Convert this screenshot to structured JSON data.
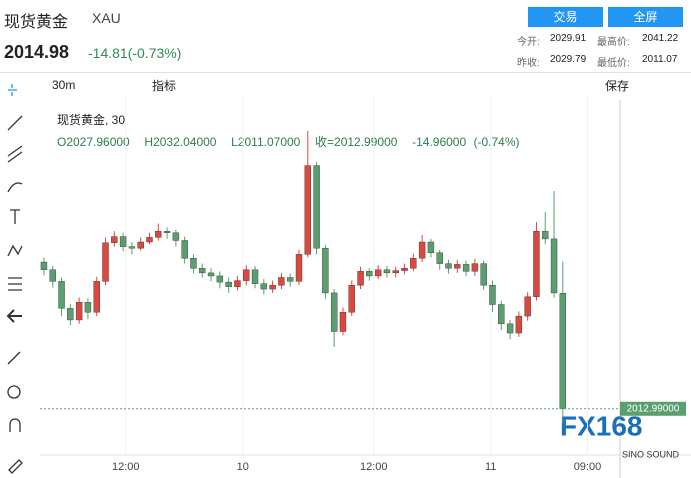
{
  "header": {
    "name": "现货黄金",
    "symbol": "XAU",
    "price": "2014.98",
    "change": "-14.81(-0.73%)",
    "buttons": [
      "交易",
      "全屏"
    ],
    "stats": [
      [
        "今开:",
        "2029.91",
        "最高价:",
        "2041.22"
      ],
      [
        "昨收:",
        "2029.79",
        "最低价:",
        "2011.07"
      ]
    ]
  },
  "toolbar": {
    "interval": "30m",
    "indicators": "指标",
    "save": "保存"
  },
  "legend": {
    "title": "现货黄金, 30",
    "values": [
      "O2027.96000",
      "H2032.04000",
      "L2011.07000",
      "收=2012.99000",
      "-14.96000 (-0.74%)"
    ]
  },
  "watermark": {
    "logo": "FX168",
    "sub": "SINO SOUND"
  },
  "chart_data": {
    "type": "candlestick",
    "up_color": "#d9493f",
    "down_color": "#5a9f6e",
    "grid": true,
    "open": [
      2032.0,
      2031.0,
      2029.5,
      2026.0,
      2024.5,
      2026.8,
      2025.5,
      2029.5,
      2034.5,
      2035.3,
      2034.0,
      2033.8,
      2034.6,
      2035.2,
      2036.0,
      2035.8,
      2034.8,
      2032.5,
      2031.2,
      2030.6,
      2030.2,
      2029.4,
      2028.8,
      2029.6,
      2031.0,
      2029.2,
      2028.5,
      2029.0,
      2030.0,
      2029.5,
      2033.0,
      2044.5,
      2033.8,
      2028.0,
      2023.0,
      2025.5,
      2029.0,
      2030.8,
      2030.2,
      2031.0,
      2030.6,
      2030.9,
      2031.2,
      2032.5,
      2034.6,
      2033.2,
      2031.8,
      2031.2,
      2031.7,
      2030.8,
      2031.8,
      2029.0,
      2026.5,
      2024.0,
      2022.8,
      2025.0,
      2027.5,
      2036.0,
      2035.0,
      2027.96
    ],
    "high": [
      2032.6,
      2031.5,
      2030.0,
      2026.6,
      2027.4,
      2027.3,
      2030.1,
      2035.2,
      2036.0,
      2035.8,
      2034.6,
      2035.2,
      2035.8,
      2037.0,
      2036.5,
      2036.2,
      2035.3,
      2033.0,
      2031.8,
      2031.2,
      2030.8,
      2030.0,
      2030.2,
      2031.6,
      2031.5,
      2029.8,
      2029.6,
      2030.6,
      2030.5,
      2033.6,
      2049.0,
      2045.0,
      2034.2,
      2028.5,
      2026.1,
      2029.6,
      2031.4,
      2031.2,
      2031.6,
      2031.5,
      2031.4,
      2031.8,
      2033.1,
      2035.5,
      2035.0,
      2033.6,
      2032.3,
      2032.3,
      2032.2,
      2032.4,
      2032.2,
      2029.6,
      2027.0,
      2024.5,
      2025.6,
      2028.1,
      2037.2,
      2038.5,
      2041.2,
      2032.04
    ],
    "low": [
      2030.3,
      2028.7,
      2025.0,
      2023.8,
      2024.0,
      2024.6,
      2025.0,
      2029.0,
      2034.0,
      2033.4,
      2033.0,
      2033.5,
      2034.3,
      2034.8,
      2035.0,
      2034.0,
      2031.8,
      2030.5,
      2030.0,
      2029.5,
      2028.6,
      2028.0,
      2028.3,
      2029.0,
      2028.6,
      2027.8,
      2028.0,
      2028.5,
      2028.8,
      2029.0,
      2032.6,
      2033.0,
      2027.2,
      2021.0,
      2022.5,
      2025.0,
      2028.5,
      2029.6,
      2029.8,
      2030.0,
      2030.0,
      2030.4,
      2030.8,
      2032.0,
      2032.6,
      2031.0,
      2030.5,
      2030.6,
      2030.2,
      2030.2,
      2028.4,
      2025.5,
      2023.2,
      2022.0,
      2022.3,
      2024.4,
      2027.0,
      2034.3,
      2027.4,
      2011.07
    ],
    "close": [
      2031.0,
      2029.5,
      2026.0,
      2024.5,
      2026.8,
      2025.5,
      2029.5,
      2034.5,
      2035.3,
      2034.0,
      2033.8,
      2034.6,
      2035.2,
      2036.0,
      2035.8,
      2034.8,
      2032.5,
      2031.2,
      2030.6,
      2030.2,
      2029.4,
      2028.8,
      2029.6,
      2031.0,
      2029.2,
      2028.5,
      2029.0,
      2030.0,
      2029.5,
      2033.0,
      2044.5,
      2033.8,
      2028.0,
      2023.0,
      2025.5,
      2029.0,
      2030.8,
      2030.2,
      2031.0,
      2030.6,
      2030.9,
      2031.2,
      2032.5,
      2034.6,
      2033.2,
      2031.8,
      2031.2,
      2031.7,
      2030.8,
      2031.8,
      2029.0,
      2026.5,
      2024.0,
      2022.8,
      2025.0,
      2027.5,
      2036.0,
      2035.0,
      2028.0,
      2012.99
    ],
    "xlim": [
      -0.45,
      65.5
    ],
    "ylim": [
      2007,
      2053
    ],
    "xticks": [
      {
        "value": 9.3,
        "label": "12:00"
      },
      {
        "value": 22.6,
        "label": "10"
      },
      {
        "value": 37.5,
        "label": "12:00"
      },
      {
        "value": 50.8,
        "label": "11"
      },
      {
        "value": 61.8,
        "label": "09:00"
      }
    ],
    "price_line": {
      "value": 2012.99,
      "label": "2012.99000"
    }
  }
}
